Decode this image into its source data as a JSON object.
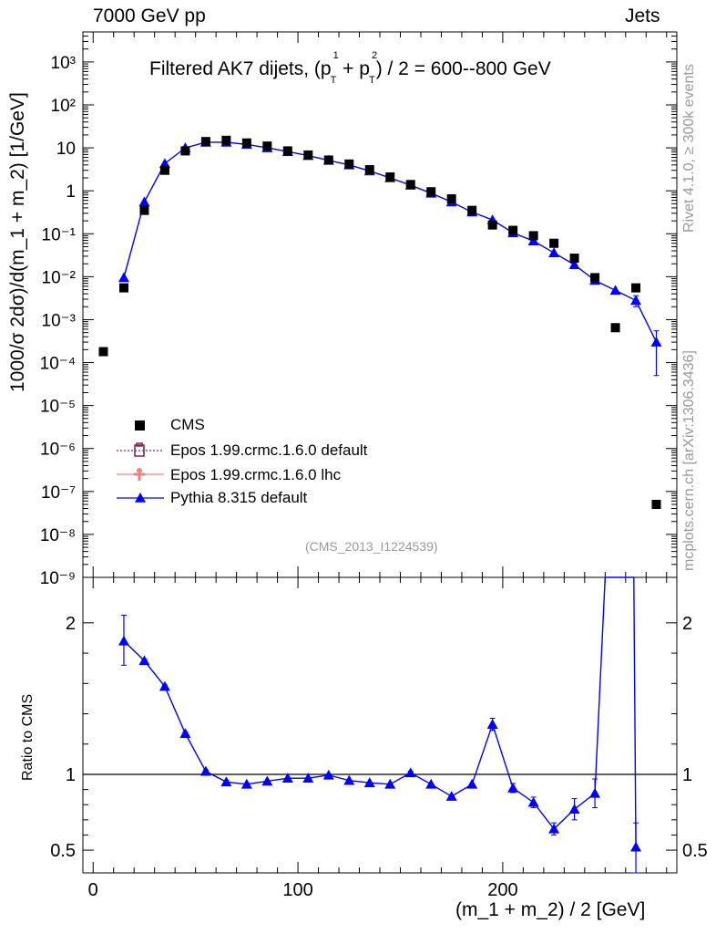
{
  "header": {
    "left": "7000 GeV pp",
    "right": "Jets"
  },
  "side": {
    "rivet": "Rivet 4.1.0, ≥ 300k events",
    "mcplots": "mcplots.cern.ch [arXiv:1306.3436]"
  },
  "analysis_id": "(CMS_2013_I1224539)",
  "colors": {
    "cms": "#000000",
    "epos_default": "#8b2252",
    "epos_lhc": "#f08080",
    "pythia": "#0000ff"
  },
  "chart_data": [
    {
      "type": "scatter",
      "title": "Filtered AK7 dijets, (p_T^1 + p_T^2) / 2 = 600--800 GeV",
      "title_main": "Filtered AK7 dijets, (p",
      "title_tail": ") / 2 = 600--800 GeV",
      "ylabel": "1000/σ  2dσ)/d(m_1 + m_2) [1/GeV]",
      "yscale": "log",
      "ylim": [
        1e-09,
        5000
      ],
      "xlim": [
        -5,
        285
      ],
      "ytick_labels": [
        "10⁻⁹",
        "10⁻⁸",
        "10⁻⁷",
        "10⁻⁶",
        "10⁻⁵",
        "10⁻⁴",
        "10⁻³",
        "10⁻²",
        "10⁻¹",
        "1",
        "10",
        "10²",
        "10³"
      ],
      "legend": [
        {
          "key": "cms",
          "label": "CMS"
        },
        {
          "key": "epos_default",
          "label": "Epos 1.99.crmc.1.6.0 default"
        },
        {
          "key": "epos_lhc",
          "label": "Epos 1.99.crmc.1.6.0 lhc"
        },
        {
          "key": "pythia",
          "label": "Pythia 8.315 default"
        }
      ],
      "series": [
        {
          "name": "CMS",
          "marker": "square",
          "x": [
            5,
            15,
            25,
            35,
            45,
            55,
            65,
            75,
            85,
            95,
            105,
            115,
            125,
            135,
            145,
            155,
            165,
            175,
            185,
            195,
            205,
            215,
            225,
            235,
            245,
            255,
            265,
            275
          ],
          "y": [
            0.00018,
            0.0055,
            0.35,
            3.0,
            8.5,
            14.0,
            15.0,
            13.0,
            11.0,
            8.5,
            6.8,
            5.2,
            4.2,
            3.1,
            2.1,
            1.4,
            0.95,
            0.65,
            0.35,
            0.16,
            0.12,
            0.09,
            0.06,
            0.027,
            0.0095,
            0.00065,
            0.0055,
            5e-08
          ]
        },
        {
          "name": "Pythia 8.315 default",
          "marker": "triangle",
          "x": [
            15,
            25,
            35,
            45,
            55,
            65,
            75,
            85,
            95,
            105,
            115,
            125,
            135,
            145,
            155,
            165,
            175,
            185,
            195,
            205,
            215,
            225,
            235,
            245,
            255,
            265,
            275
          ],
          "y": [
            0.0095,
            0.55,
            4.3,
            10.0,
            13.5,
            13.5,
            12.0,
            10.0,
            8.2,
            6.6,
            5.1,
            4.0,
            2.9,
            2.0,
            1.35,
            0.88,
            0.55,
            0.32,
            0.21,
            0.105,
            0.068,
            0.036,
            0.019,
            0.0082,
            0.0048,
            0.0028,
            0.0003
          ],
          "y_err": [
            0,
            0,
            0,
            0,
            0,
            0,
            0,
            0,
            0,
            0,
            0,
            0,
            0,
            0,
            0,
            0,
            0,
            0,
            0,
            0,
            0,
            0,
            0.003,
            0.001,
            0,
            0.0008,
            0.00025
          ]
        }
      ]
    },
    {
      "type": "line",
      "ylabel": "Ratio to CMS",
      "xlabel": "(m_1 + m_2) / 2 [GeV]",
      "xlim": [
        -5,
        285
      ],
      "ylim": [
        0.35,
        2.3
      ],
      "xticks": [
        0,
        100,
        200
      ],
      "xtick_labels": [
        "0",
        "100",
        "200"
      ],
      "yticks": [
        0.5,
        1,
        2
      ],
      "ytick_labels": [
        "0.5",
        "1",
        "2"
      ],
      "reference_line": 1,
      "series": [
        {
          "name": "Pythia 8.315 default / CMS",
          "marker": "triangle",
          "x": [
            15,
            25,
            35,
            45,
            55,
            65,
            75,
            85,
            95,
            105,
            115,
            125,
            135,
            145,
            155,
            165,
            175,
            185,
            195,
            205,
            215,
            225,
            235,
            245,
            265
          ],
          "y": [
            1.88,
            1.75,
            1.58,
            1.27,
            1.02,
            0.95,
            0.935,
            0.955,
            0.975,
            0.975,
            0.995,
            0.96,
            0.945,
            0.935,
            1.01,
            0.935,
            0.855,
            0.935,
            1.33,
            0.91,
            0.815,
            0.64,
            0.77,
            0.875,
            0.52
          ],
          "y_lo": [
            1.72,
            1.74,
            1.57,
            1.26,
            1.01,
            0.94,
            0.93,
            0.95,
            0.97,
            0.97,
            0.99,
            0.955,
            0.94,
            0.93,
            1.0,
            0.93,
            0.85,
            0.93,
            1.29,
            0.88,
            0.78,
            0.6,
            0.7,
            0.78,
            0.3
          ],
          "y_hi": [
            2.05,
            1.76,
            1.59,
            1.28,
            1.03,
            0.96,
            0.94,
            0.96,
            0.98,
            0.98,
            1.0,
            0.965,
            0.95,
            0.94,
            1.02,
            0.94,
            0.86,
            0.94,
            1.37,
            0.94,
            0.85,
            0.68,
            0.84,
            0.97,
            0.68
          ],
          "spike": {
            "x_up": 250,
            "x_down": 260,
            "x_up2": 264
          }
        }
      ]
    }
  ]
}
